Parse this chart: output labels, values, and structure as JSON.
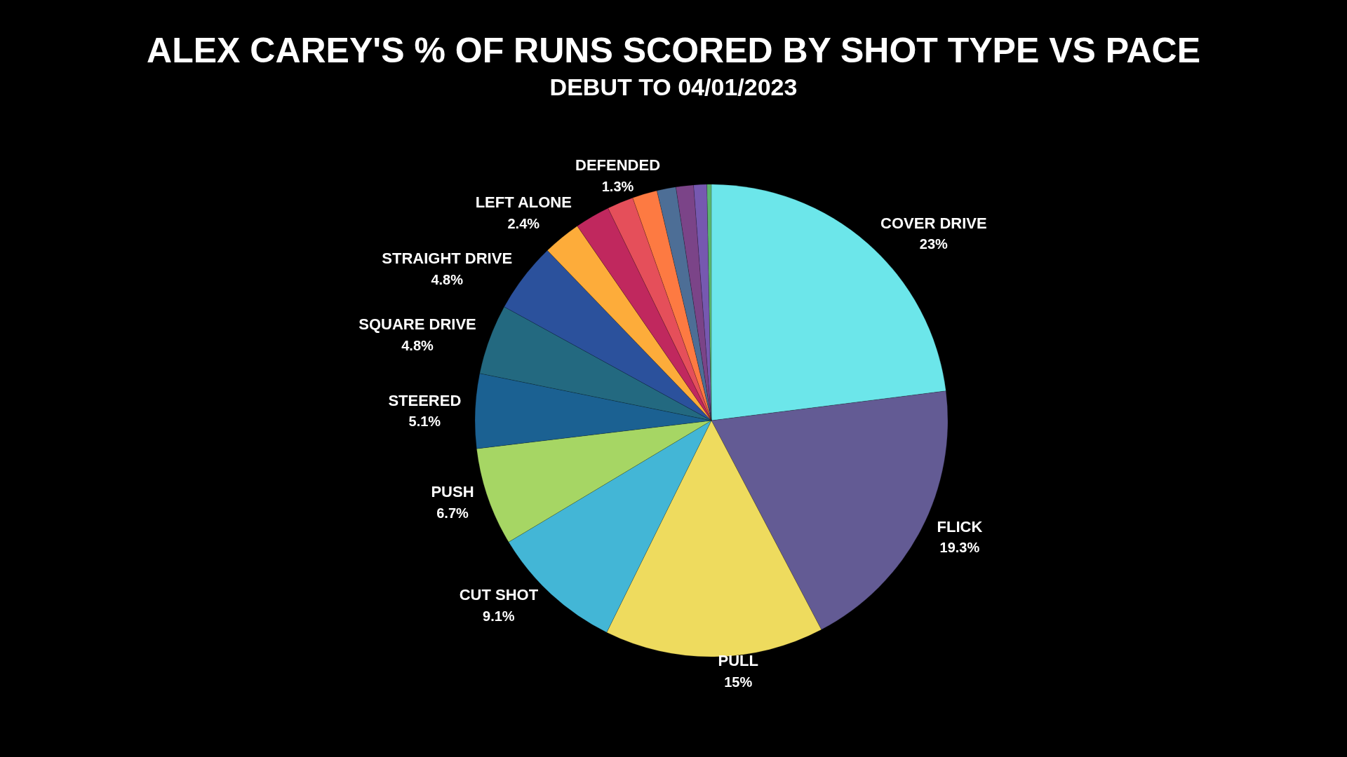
{
  "chart_data": {
    "type": "pie",
    "title": "ALEX CAREY'S % OF RUNS SCORED BY SHOT TYPE VS PACE",
    "subtitle": "DEBUT TO 04/01/2023",
    "categories": [
      "COVER DRIVE",
      "FLICK",
      "PULL",
      "CUT SHOT",
      "PUSH",
      "STEERED",
      "SQUARE DRIVE",
      "STRAIGHT DRIVE",
      null,
      "LEFT ALONE",
      null,
      null,
      "DEFENDED",
      null,
      null,
      null
    ],
    "values": [
      23,
      19.3,
      15,
      9.1,
      6.7,
      5.1,
      4.8,
      4.8,
      2.6,
      2.4,
      1.8,
      1.7,
      1.3,
      1.2,
      0.9,
      0.3
    ],
    "value_labels": [
      "23%",
      "19.3%",
      "15%",
      "9.1%",
      "6.7%",
      "5.1%",
      "4.8%",
      "4.8%",
      null,
      "2.4%",
      null,
      null,
      "1.3%",
      null,
      null,
      null
    ],
    "colors": [
      "#6ce6ea",
      "#635b94",
      "#eedb5e",
      "#43b6d6",
      "#a6d664",
      "#1b6192",
      "#236980",
      "#2b519c",
      "#fdac3a",
      "#c0285e",
      "#e54f5a",
      "#fd7a42",
      "#4d6e96",
      "#7b4488",
      "#7658b0",
      "#5bb56f"
    ]
  }
}
